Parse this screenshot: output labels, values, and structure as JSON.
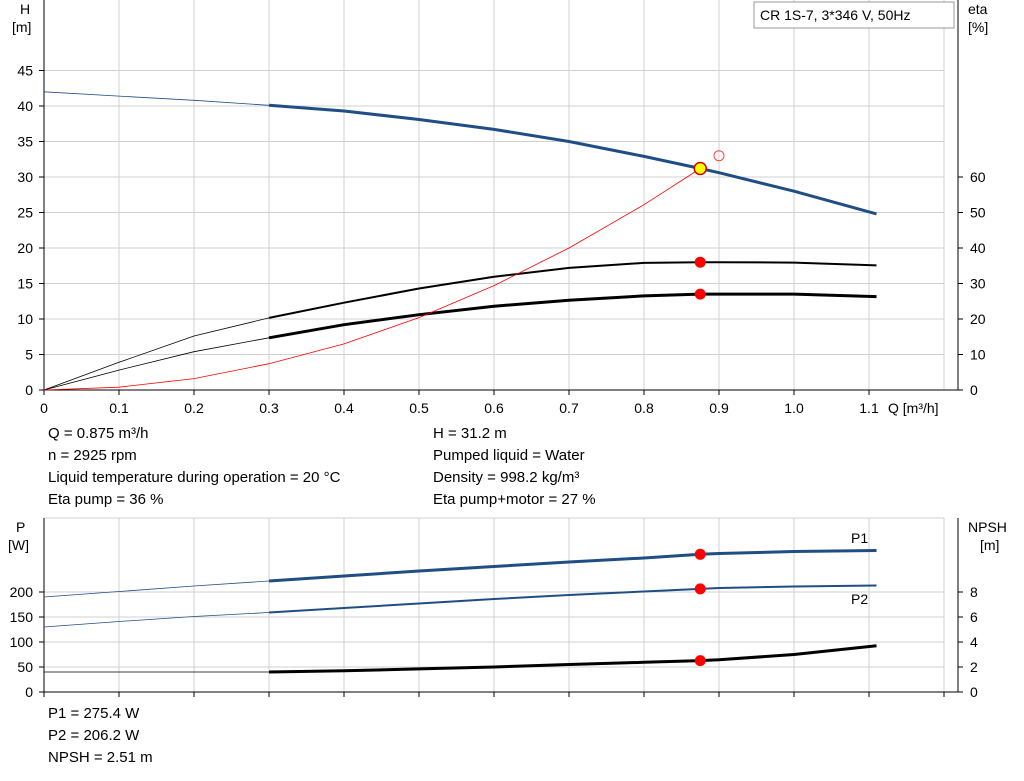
{
  "chart_data": [
    {
      "type": "line",
      "legend_label": "CR 1S-7, 3*346 V, 50Hz",
      "xlabel": "Q [m³/h]",
      "xticks": [
        "0",
        "0.1",
        "0.2",
        "0.3",
        "0.4",
        "0.5",
        "0.6",
        "0.7",
        "0.8",
        "0.9",
        "1.0",
        "1.1"
      ],
      "xlim": [
        0,
        1.2
      ],
      "ylabel_left": [
        "H",
        "[m]"
      ],
      "yticks_left": [
        "0",
        "5",
        "10",
        "15",
        "20",
        "25",
        "30",
        "35",
        "40",
        "45"
      ],
      "ylim_left": [
        0,
        50
      ],
      "ylabel_right": [
        "eta",
        "[%]"
      ],
      "yticks_right": [
        "0",
        "10",
        "20",
        "30",
        "40",
        "50",
        "60"
      ],
      "ylim_right": [
        0,
        100
      ],
      "grid": true,
      "duty_point_q": 0.875,
      "series": [
        {
          "id": "head",
          "axis": "left",
          "color": "#1f4e85",
          "x": [
            0,
            0.1,
            0.2,
            0.3,
            0.4,
            0.5,
            0.6,
            0.7,
            0.8,
            0.875,
            0.9,
            1.0,
            1.11
          ],
          "values": [
            42.0,
            41.4,
            40.8,
            40.1,
            39.3,
            38.1,
            36.7,
            35.0,
            32.9,
            31.2,
            30.6,
            28.0,
            24.8
          ]
        },
        {
          "id": "eta-pump",
          "axis": "right",
          "color": "#000000",
          "x": [
            0,
            0.1,
            0.2,
            0.3,
            0.4,
            0.5,
            0.6,
            0.7,
            0.8,
            0.875,
            0.9,
            1.0,
            1.11
          ],
          "values": [
            0,
            7.8,
            15.2,
            20.3,
            24.6,
            28.6,
            31.9,
            34.4,
            35.8,
            36.0,
            36.0,
            35.9,
            35.1
          ]
        },
        {
          "id": "eta-pump-motor",
          "axis": "right",
          "color": "#000000",
          "x": [
            0,
            0.1,
            0.2,
            0.3,
            0.4,
            0.5,
            0.6,
            0.7,
            0.8,
            0.875,
            0.9,
            1.0,
            1.11
          ],
          "values": [
            0,
            5.6,
            10.8,
            14.7,
            18.4,
            21.2,
            23.6,
            25.3,
            26.5,
            27.0,
            27.0,
            27.0,
            26.3
          ]
        },
        {
          "id": "system-curve",
          "axis": "left",
          "color": "#ff0000",
          "x": [
            0,
            0.1,
            0.2,
            0.3,
            0.4,
            0.5,
            0.6,
            0.7,
            0.8,
            0.875
          ],
          "values": [
            0,
            0.4,
            1.6,
            3.7,
            6.5,
            10.2,
            14.7,
            20.0,
            26.1,
            31.2
          ]
        }
      ]
    },
    {
      "type": "line",
      "xlim": [
        0,
        1.2
      ],
      "ylabel_left": [
        "P",
        "[W]"
      ],
      "yticks_left": [
        "0",
        "50",
        "100",
        "150",
        "200"
      ],
      "ylim_left": [
        0,
        275
      ],
      "ylabel_right": [
        "NPSH",
        "[m]"
      ],
      "yticks_right": [
        "0",
        "2",
        "4",
        "6",
        "8"
      ],
      "ylim_right": [
        0,
        11
      ],
      "grid": true,
      "duty_point_q": 0.875,
      "series": [
        {
          "name": "P1",
          "axis": "left",
          "color": "#1f4e85",
          "x": [
            0,
            0.1,
            0.2,
            0.3,
            0.4,
            0.5,
            0.6,
            0.7,
            0.8,
            0.875,
            0.9,
            1.0,
            1.11
          ],
          "values": [
            190,
            201,
            212,
            222,
            232,
            242,
            251,
            260,
            268,
            275.4,
            277,
            281,
            283
          ]
        },
        {
          "name": "P2",
          "axis": "left",
          "color": "#1f4e85",
          "x": [
            0,
            0.1,
            0.2,
            0.3,
            0.4,
            0.5,
            0.6,
            0.7,
            0.8,
            0.875,
            0.9,
            1.0,
            1.11
          ],
          "values": [
            130,
            141,
            151,
            159,
            168,
            177,
            186,
            194,
            201,
            206.2,
            208,
            211,
            213
          ]
        },
        {
          "id": "npsh",
          "axis": "right",
          "color": "#000000",
          "x": [
            0,
            0.3,
            0.4,
            0.5,
            0.6,
            0.7,
            0.8,
            0.875,
            0.9,
            1.0,
            1.11
          ],
          "values": [
            1.6,
            1.6,
            1.7,
            1.85,
            2.0,
            2.2,
            2.38,
            2.51,
            2.58,
            3.0,
            3.7
          ]
        }
      ]
    }
  ],
  "info_top_left": [
    "Q = 0.875 m³/h",
    "n = 2925 rpm",
    "Liquid temperature during operation = 20 °C",
    "Eta pump = 36 %"
  ],
  "info_top_right": [
    "H = 31.2 m",
    "Pumped liquid = Water",
    "Density = 998.2 kg/m³",
    "Eta pump+motor = 27 %"
  ],
  "info_bottom": [
    "P1 = 275.4 W",
    "P2 = 206.2 W",
    "NPSH = 2.51 m"
  ]
}
